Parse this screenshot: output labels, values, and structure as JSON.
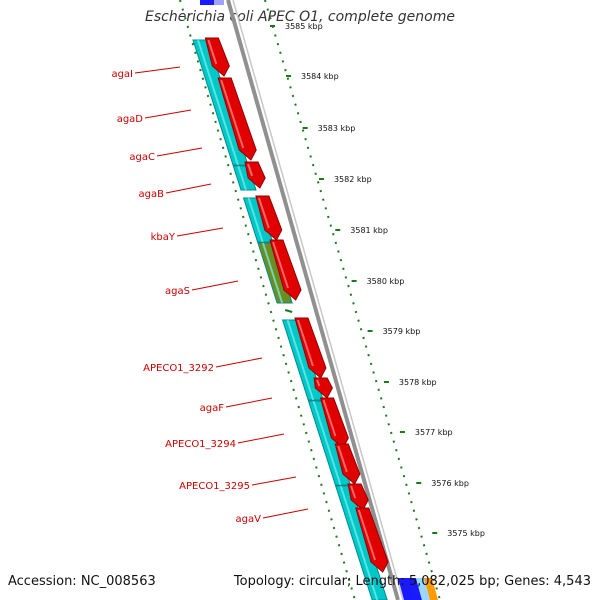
{
  "title": "Escherichia coli APEC O1, complete genome",
  "footer": {
    "accession": "Accession: NC_008563",
    "topology": "Topology: circular; Length: 5,082,025 bp; Genes: 4,543"
  },
  "colors": {
    "gene_label": "#cc0000",
    "cds_reverse": "#00c8c8",
    "cds_other": "#6b8e23",
    "gene_arrow": "#e00000",
    "backbone": "#909090",
    "gc_dots": "#1a7a1a"
  },
  "scale": {
    "ticks": [
      "3585 kbp",
      "3584 kbp",
      "3583 kbp",
      "3582 kbp",
      "3581 kbp",
      "3580 kbp",
      "3579 kbp",
      "3578 kbp",
      "3577 kbp",
      "3576 kbp",
      "3575 kbp"
    ]
  },
  "genes": [
    {
      "name": "agaI"
    },
    {
      "name": "agaD"
    },
    {
      "name": "agaC"
    },
    {
      "name": "agaB"
    },
    {
      "name": "kbaY"
    },
    {
      "name": "agaS"
    },
    {
      "name": "APECO1_3292"
    },
    {
      "name": "agaF"
    },
    {
      "name": "APECO1_3294"
    },
    {
      "name": "APECO1_3295"
    },
    {
      "name": "agaV"
    }
  ]
}
